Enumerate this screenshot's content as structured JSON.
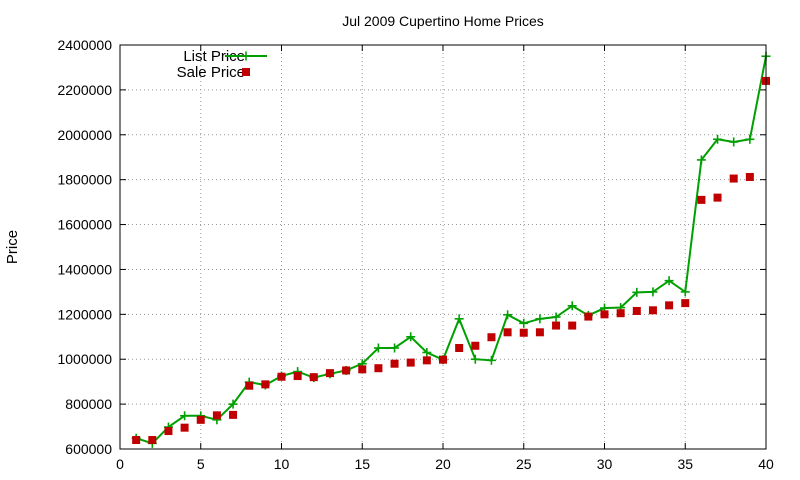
{
  "chart_data": {
    "type": "line",
    "title": "Jul 2009 Cupertino Home Prices",
    "xlabel": "",
    "ylabel": "Price",
    "xlim": [
      0,
      40
    ],
    "ylim": [
      600000,
      2400000
    ],
    "xticks": [
      0,
      5,
      10,
      15,
      20,
      25,
      30,
      35,
      40
    ],
    "yticks": [
      600000,
      800000,
      1000000,
      1200000,
      1400000,
      1600000,
      1800000,
      2000000,
      2200000,
      2400000
    ],
    "grid": true,
    "legend_position": "top-left",
    "x": [
      1,
      2,
      3,
      4,
      5,
      6,
      7,
      8,
      9,
      10,
      11,
      12,
      13,
      14,
      15,
      16,
      17,
      18,
      19,
      20,
      21,
      22,
      23,
      24,
      25,
      26,
      27,
      28,
      29,
      30,
      31,
      32,
      33,
      34,
      35,
      36,
      37,
      38,
      39,
      40
    ],
    "series": [
      {
        "name": "List Price",
        "style": "linespoints",
        "marker": "plus",
        "color": "#00a000",
        "values": [
          648000,
          625000,
          698000,
          748000,
          748000,
          730000,
          800000,
          898000,
          885000,
          925000,
          945000,
          918000,
          935000,
          950000,
          980000,
          1050000,
          1050000,
          1100000,
          1030000,
          998000,
          1180000,
          1000000,
          995000,
          1198000,
          1160000,
          1180000,
          1188000,
          1238000,
          1195000,
          1228000,
          1230000,
          1298000,
          1300000,
          1350000,
          1300000,
          1888000,
          1980000,
          1968000,
          1980000,
          2350000
        ]
      },
      {
        "name": "Sale Price",
        "style": "points",
        "marker": "square",
        "color": "#c00000",
        "values": [
          640000,
          640000,
          680000,
          695000,
          730000,
          750000,
          752000,
          882000,
          888000,
          922000,
          925000,
          920000,
          938000,
          950000,
          955000,
          960000,
          980000,
          985000,
          995000,
          998000,
          1050000,
          1060000,
          1098000,
          1120000,
          1118000,
          1120000,
          1150000,
          1150000,
          1190000,
          1200000,
          1205000,
          1215000,
          1218000,
          1240000,
          1250000,
          1710000,
          1720000,
          1805000,
          1812000,
          2240000
        ]
      }
    ]
  }
}
